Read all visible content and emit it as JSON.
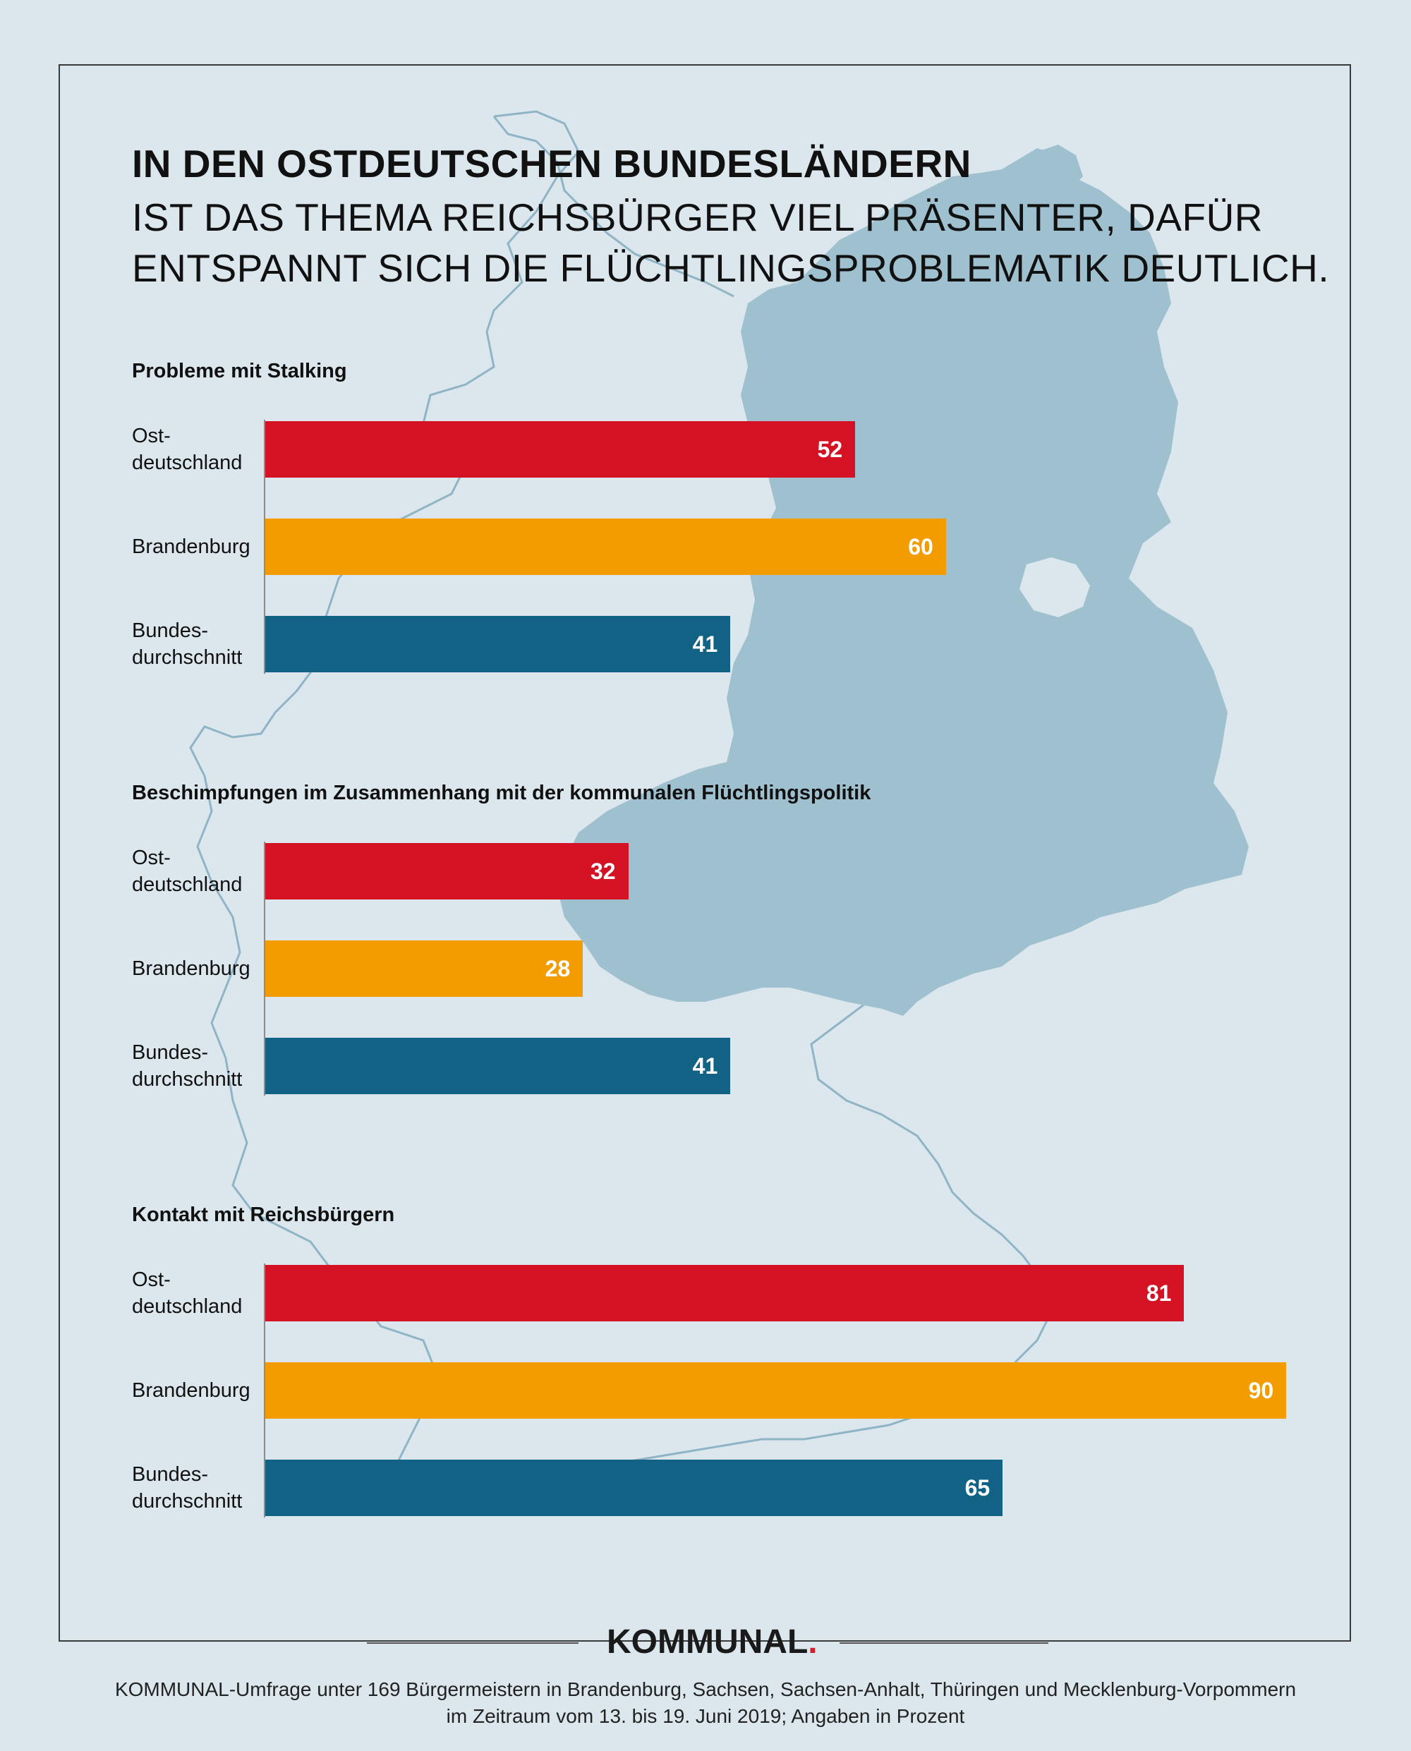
{
  "colors": {
    "background": "#dbe7ed",
    "map_fill": "#9fc0cf",
    "map_outline": "#8fb4c6",
    "ostdeutschland": "#d41224",
    "brandenburg": "#f39c00",
    "bundesdurchschnitt": "#126286"
  },
  "header": {
    "title_bold": "IN DEN OSTDEUTSCHEN BUNDESLÄNDERN",
    "title_light": "IST DAS THEMA REICHSBÜRGER VIEL PRÄSENTER, DAFÜR ENTSPANNT SICH DIE FLÜCHTLINGSPROBLEMATIK DEUTLICH."
  },
  "labels": {
    "ost": "Ost-\ndeutschland",
    "brb": "Brandenburg",
    "bund": "Bundes-\ndurchschnitt"
  },
  "chart_data": [
    {
      "type": "bar",
      "orientation": "horizontal",
      "title": "Probleme mit Stalking",
      "categories": [
        "Ost-deutschland",
        "Brandenburg",
        "Bundes-durchschnitt"
      ],
      "values": [
        52,
        60,
        41
      ],
      "xlim": [
        0,
        100
      ]
    },
    {
      "type": "bar",
      "orientation": "horizontal",
      "title": "Beschimpfungen im Zusammenhang mit der kommunalen Flüchtlingspolitik",
      "categories": [
        "Ost-deutschland",
        "Brandenburg",
        "Bundes-durchschnitt"
      ],
      "values": [
        32,
        28,
        41
      ],
      "xlim": [
        0,
        100
      ]
    },
    {
      "type": "bar",
      "orientation": "horizontal",
      "title": "Kontakt mit Reichsbürgern",
      "categories": [
        "Ost-deutschland",
        "Brandenburg",
        "Bundes-durchschnitt"
      ],
      "values": [
        81,
        90,
        65
      ],
      "xlim": [
        0,
        100
      ]
    }
  ],
  "logo": {
    "text": "KOMMUNAL",
    "dot": "."
  },
  "footnote": "KOMMUNAL-Umfrage unter 169 Bürgermeistern in Brandenburg, Sachsen, Sachsen-Anhalt, Thüringen und Mecklenburg-Vorpommern\nim Zeitraum vom 13. bis 19. Juni 2019; Angaben in Prozent"
}
